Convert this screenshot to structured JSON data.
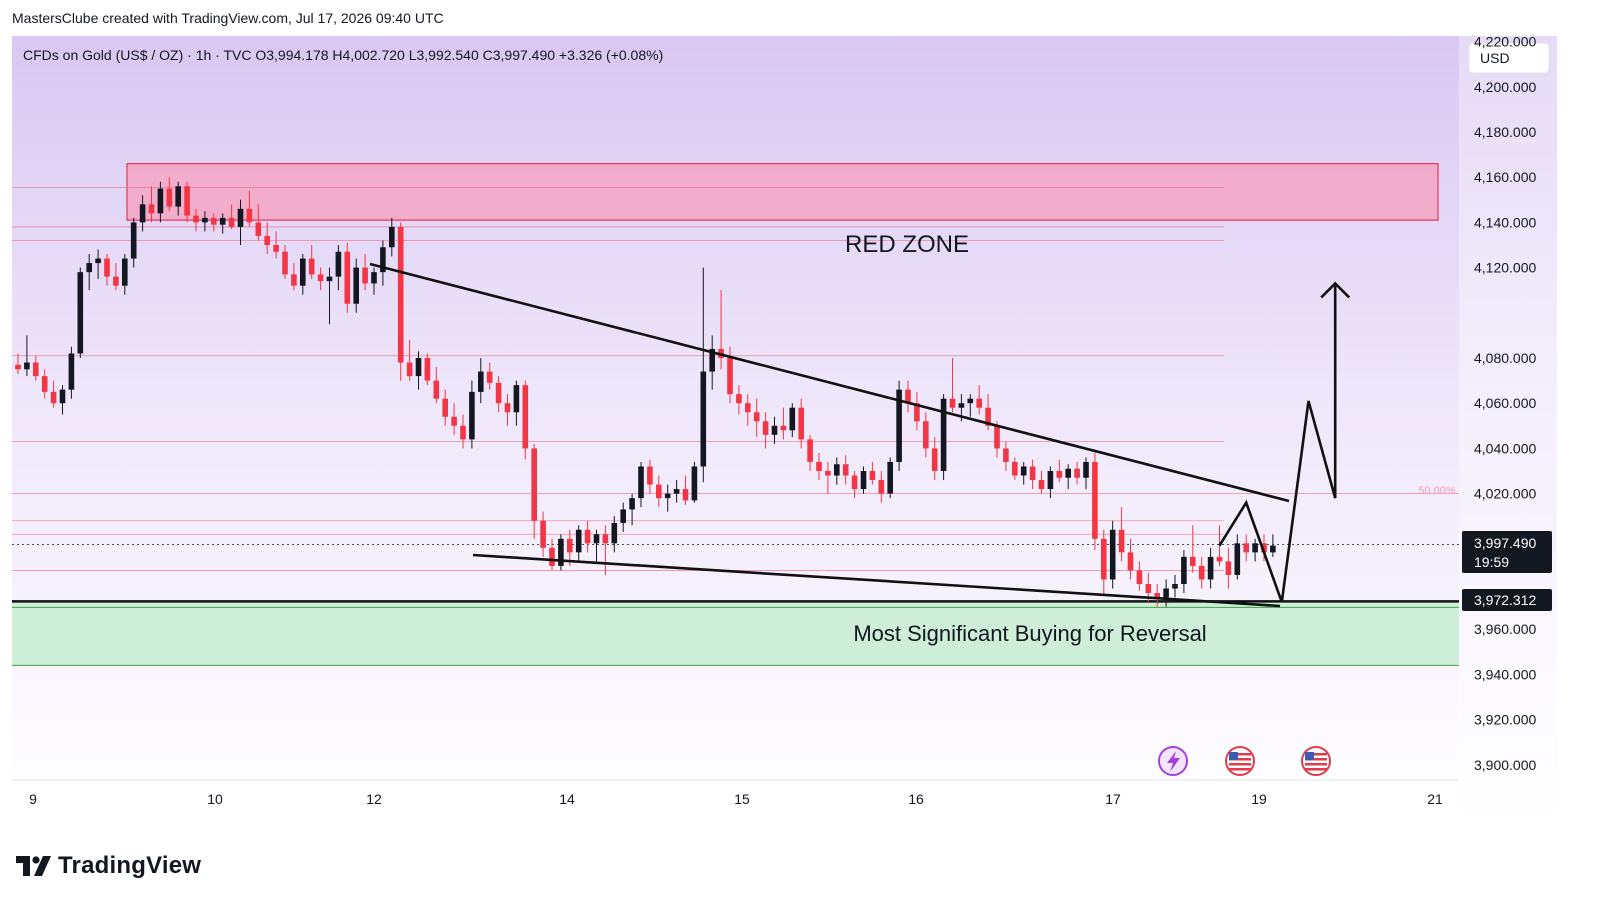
{
  "header": {
    "credit": "MastersClube created with TradingView.com, Jul 17, 2026 09:40 UTC"
  },
  "symbol_bar": {
    "text": "CFDs on Gold (US$ / OZ) · 1h · TVC  O3,994.178  H4,002.720  L3,992.540  C3,997.490  +3.326 (+0.08%)"
  },
  "currency_button": "USD",
  "brand": {
    "name": "TradingView"
  },
  "annotations": {
    "red_zone": "RED ZONE",
    "buy_zone": "Most Significant Buying for Reversal",
    "fib_level": "50.00%"
  },
  "price_tag": {
    "price": "3,997.490",
    "countdown": "19:59"
  },
  "level_tag": {
    "price": "3,972.312"
  },
  "colors": {
    "bull": "#131722",
    "bear": "#f23645",
    "red_zone_fill": "#f5a3c0",
    "red_zone_border": "#e8335a",
    "green_zone_fill": "#c6ecd0",
    "green_zone_line": "#43a047",
    "background_top": "#d8c8f2"
  },
  "icons": [
    "lightning-icon",
    "us-flag-icon",
    "us-flag-icon"
  ],
  "chart_data": {
    "type": "candlestick",
    "x_tick_labels": [
      "9",
      "10",
      "12",
      "14",
      "15",
      "16",
      "17",
      "19",
      "21"
    ],
    "y_tick_labels": [
      "4,220.000",
      "4,200.000",
      "4,180.000",
      "4,160.000",
      "4,140.000",
      "4,120.000",
      "4,080.000",
      "4,060.000",
      "4,040.000",
      "4,020.000",
      "3,960.000",
      "3,940.000",
      "3,920.000",
      "3,900.000"
    ],
    "y_range": [
      3895,
      4230
    ],
    "last": {
      "open": 3994.178,
      "high": 4002.72,
      "low": 3992.54,
      "close": 3997.49,
      "change": 3.326,
      "change_pct": 0.08
    },
    "zones": [
      {
        "name": "red-zone",
        "low": 4141,
        "high": 4166
      },
      {
        "name": "buy-zone",
        "low": 3944,
        "high": 3972.312
      }
    ],
    "horizontal_levels": [
      4155.5,
      4138,
      4132,
      4081,
      4043,
      4020,
      4008,
      4002,
      3986
    ],
    "candles": [
      [
        4077,
        4082,
        4073,
        4075
      ],
      [
        4075,
        4090,
        4072,
        4078
      ],
      [
        4078,
        4081,
        4070,
        4072
      ],
      [
        4072,
        4075,
        4062,
        4065
      ],
      [
        4065,
        4070,
        4058,
        4060
      ],
      [
        4060,
        4068,
        4055,
        4066
      ],
      [
        4066,
        4085,
        4062,
        4082
      ],
      [
        4082,
        4120,
        4080,
        4118
      ],
      [
        4118,
        4126,
        4110,
        4122
      ],
      [
        4122,
        4128,
        4115,
        4124
      ],
      [
        4124,
        4126,
        4112,
        4116
      ],
      [
        4116,
        4122,
        4110,
        4112
      ],
      [
        4112,
        4126,
        4108,
        4124
      ],
      [
        4124,
        4142,
        4120,
        4140
      ],
      [
        4140,
        4152,
        4136,
        4148
      ],
      [
        4148,
        4156,
        4140,
        4144
      ],
      [
        4144,
        4158,
        4140,
        4155
      ],
      [
        4155,
        4160,
        4145,
        4147
      ],
      [
        4147,
        4158,
        4143,
        4156
      ],
      [
        4156,
        4158,
        4140,
        4143
      ],
      [
        4143,
        4146,
        4136,
        4140
      ],
      [
        4140,
        4145,
        4136,
        4142
      ],
      [
        4142,
        4144,
        4136,
        4139
      ],
      [
        4139,
        4144,
        4135,
        4142
      ],
      [
        4142,
        4148,
        4137,
        4138
      ],
      [
        4138,
        4150,
        4130,
        4146
      ],
      [
        4146,
        4154,
        4138,
        4140
      ],
      [
        4140,
        4148,
        4132,
        4134
      ],
      [
        4134,
        4140,
        4126,
        4130
      ],
      [
        4130,
        4136,
        4124,
        4127
      ],
      [
        4127,
        4130,
        4115,
        4117
      ],
      [
        4117,
        4122,
        4110,
        4112
      ],
      [
        4112,
        4126,
        4108,
        4124
      ],
      [
        4124,
        4130,
        4115,
        4117
      ],
      [
        4117,
        4120,
        4110,
        4114
      ],
      [
        4114,
        4120,
        4095,
        4116
      ],
      [
        4116,
        4130,
        4110,
        4127
      ],
      [
        4127,
        4131,
        4100,
        4104
      ],
      [
        4104,
        4124,
        4100,
        4120
      ],
      [
        4120,
        4126,
        4110,
        4113
      ],
      [
        4113,
        4120,
        4108,
        4118
      ],
      [
        4118,
        4132,
        4112,
        4129
      ],
      [
        4129,
        4142,
        4125,
        4138
      ],
      [
        4138,
        4140,
        4070,
        4078
      ],
      [
        4078,
        4088,
        4070,
        4072
      ],
      [
        4072,
        4083,
        4066,
        4080
      ],
      [
        4080,
        4082,
        4068,
        4070
      ],
      [
        4070,
        4076,
        4060,
        4062
      ],
      [
        4062,
        4066,
        4050,
        4054
      ],
      [
        4054,
        4060,
        4046,
        4050
      ],
      [
        4050,
        4055,
        4040,
        4044
      ],
      [
        4044,
        4070,
        4040,
        4065
      ],
      [
        4065,
        4080,
        4060,
        4074
      ],
      [
        4074,
        4078,
        4066,
        4069
      ],
      [
        4069,
        4072,
        4056,
        4060
      ],
      [
        4060,
        4064,
        4050,
        4056
      ],
      [
        4056,
        4070,
        4050,
        4068
      ],
      [
        4068,
        4070,
        4035,
        4040
      ],
      [
        4040,
        4042,
        4000,
        4008
      ],
      [
        4008,
        4012,
        3992,
        3996
      ],
      [
        3996,
        4000,
        3986,
        3988
      ],
      [
        3988,
        4002,
        3986,
        4000
      ],
      [
        4000,
        4004,
        3988,
        3994
      ],
      [
        3994,
        4006,
        3990,
        4004
      ],
      [
        4004,
        4008,
        3994,
        3998
      ],
      [
        3998,
        4004,
        3990,
        4002
      ],
      [
        4002,
        4006,
        3984,
        3998
      ],
      [
        3998,
        4010,
        3994,
        4007
      ],
      [
        4007,
        4016,
        4003,
        4013
      ],
      [
        4013,
        4020,
        4006,
        4018
      ],
      [
        4018,
        4034,
        4014,
        4032
      ],
      [
        4032,
        4035,
        4020,
        4024
      ],
      [
        4024,
        4028,
        4014,
        4018
      ],
      [
        4018,
        4024,
        4012,
        4020
      ],
      [
        4020,
        4026,
        4016,
        4022
      ],
      [
        4022,
        4028,
        4015,
        4017
      ],
      [
        4017,
        4034,
        4016,
        4032
      ],
      [
        4032,
        4120,
        4025,
        4074
      ],
      [
        4074,
        4090,
        4066,
        4084
      ],
      [
        4084,
        4110,
        4075,
        4080
      ],
      [
        4080,
        4085,
        4060,
        4064
      ],
      [
        4064,
        4068,
        4055,
        4060
      ],
      [
        4060,
        4064,
        4050,
        4056
      ],
      [
        4056,
        4062,
        4045,
        4052
      ],
      [
        4052,
        4056,
        4040,
        4046
      ],
      [
        4046,
        4054,
        4042,
        4050
      ],
      [
        4050,
        4058,
        4044,
        4048
      ],
      [
        4048,
        4060,
        4045,
        4058
      ],
      [
        4058,
        4062,
        4040,
        4044
      ],
      [
        4044,
        4046,
        4030,
        4034
      ],
      [
        4034,
        4038,
        4026,
        4030
      ],
      [
        4030,
        4034,
        4020,
        4028
      ],
      [
        4028,
        4036,
        4024,
        4033
      ],
      [
        4033,
        4037,
        4024,
        4028
      ],
      [
        4028,
        4030,
        4018,
        4022
      ],
      [
        4022,
        4032,
        4020,
        4030
      ],
      [
        4030,
        4034,
        4024,
        4026
      ],
      [
        4026,
        4030,
        4016,
        4020
      ],
      [
        4020,
        4036,
        4018,
        4034
      ],
      [
        4034,
        4070,
        4030,
        4066
      ],
      [
        4066,
        4070,
        4056,
        4060
      ],
      [
        4060,
        4065,
        4048,
        4052
      ],
      [
        4052,
        4056,
        4036,
        4040
      ],
      [
        4040,
        4045,
        4026,
        4030
      ],
      [
        4030,
        4064,
        4026,
        4062
      ],
      [
        4062,
        4080,
        4056,
        4058
      ],
      [
        4058,
        4064,
        4052,
        4060
      ],
      [
        4060,
        4064,
        4054,
        4062
      ],
      [
        4062,
        4068,
        4055,
        4058
      ],
      [
        4058,
        4064,
        4048,
        4050
      ],
      [
        4050,
        4052,
        4036,
        4040
      ],
      [
        4040,
        4043,
        4030,
        4034
      ],
      [
        4034,
        4036,
        4026,
        4028
      ],
      [
        4028,
        4034,
        4024,
        4032
      ],
      [
        4032,
        4035,
        4022,
        4026
      ],
      [
        4026,
        4030,
        4020,
        4022
      ],
      [
        4022,
        4032,
        4018,
        4030
      ],
      [
        4030,
        4035,
        4025,
        4027
      ],
      [
        4027,
        4033,
        4022,
        4031
      ],
      [
        4031,
        4034,
        4024,
        4027
      ],
      [
        4027,
        4036,
        4022,
        4034
      ],
      [
        4034,
        4038,
        3995,
        4000
      ],
      [
        4000,
        4004,
        3975,
        3982
      ],
      [
        3982,
        4008,
        3978,
        4004
      ],
      [
        4004,
        4014,
        3990,
        3994
      ],
      [
        3994,
        4000,
        3982,
        3986
      ],
      [
        3986,
        3990,
        3977,
        3980
      ],
      [
        3980,
        3985,
        3972,
        3976
      ],
      [
        3976,
        3980,
        3970,
        3974
      ],
      [
        3974,
        3982,
        3970,
        3978
      ],
      [
        3978,
        3984,
        3974,
        3980
      ],
      [
        3980,
        3995,
        3976,
        3992
      ],
      [
        3992,
        4006,
        3985,
        3988
      ],
      [
        3988,
        3992,
        3978,
        3982
      ],
      [
        3982,
        3996,
        3978,
        3992
      ],
      [
        3992,
        4006,
        3988,
        3990
      ],
      [
        3990,
        3996,
        3978,
        3984
      ],
      [
        3984,
        4002,
        3982,
        3998
      ],
      [
        3998,
        4002,
        3990,
        3994
      ],
      [
        3994,
        4000,
        3990,
        3998
      ],
      [
        3998,
        4002,
        3990,
        3994
      ],
      [
        3994,
        4002,
        3992,
        3997
      ]
    ],
    "projection_path": [
      [
        135,
        3997
      ],
      [
        138,
        4016
      ],
      [
        142,
        3972
      ],
      [
        145,
        4061
      ],
      [
        148,
        4018
      ],
      [
        148,
        4113
      ]
    ]
  }
}
